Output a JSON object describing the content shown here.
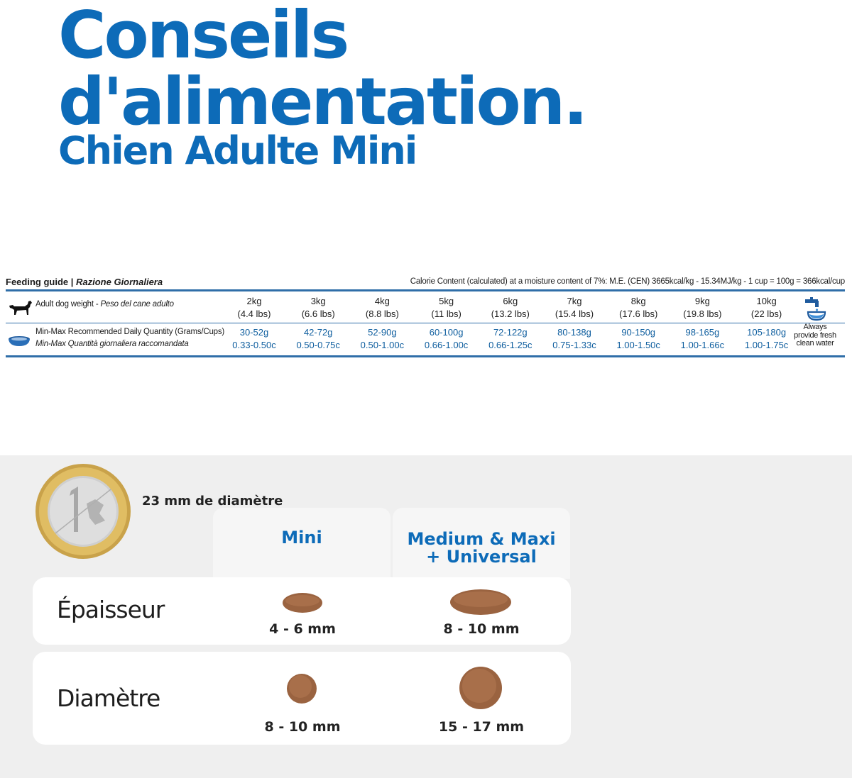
{
  "header": {
    "title_line1": "Conseils",
    "title_line2": "d'alimentation.",
    "subtitle": "Chien Adulte Mini"
  },
  "feeding_guide": {
    "title": "Feeding guide",
    "title_sep": " | ",
    "title_it": "Razione Giornaliera",
    "calorie_note": "Calorie Content (calculated) at a moisture content of 7%: M.E. (CEN) 3665kcal/kg - 15.34MJ/kg - 1 cup = 100g = 366kcal/cup",
    "weight_label": "Adult dog weight - ",
    "weight_label_it": "Peso del cane adulto",
    "qty_label": "Min-Max Recommended Daily Quantity (Grams/Cups)",
    "qty_label_it": "Min-Max Quantità giornaliera raccomandata",
    "columns": [
      {
        "kg": "2kg",
        "lbs": "(4.4 lbs)",
        "grams": "30-52g",
        "cups": "0.33-0.50c"
      },
      {
        "kg": "3kg",
        "lbs": "(6.6 lbs)",
        "grams": "42-72g",
        "cups": "0.50-0.75c"
      },
      {
        "kg": "4kg",
        "lbs": "(8.8 lbs)",
        "grams": "52-90g",
        "cups": "0.50-1.00c"
      },
      {
        "kg": "5kg",
        "lbs": "(11 lbs)",
        "grams": "60-100g",
        "cups": "0.66-1.00c"
      },
      {
        "kg": "6kg",
        "lbs": "(13.2 lbs)",
        "grams": "72-122g",
        "cups": "0.66-1.25c"
      },
      {
        "kg": "7kg",
        "lbs": "(15.4 lbs)",
        "grams": "80-138g",
        "cups": "0.75-1.33c"
      },
      {
        "kg": "8kg",
        "lbs": "(17.6 lbs)",
        "grams": "90-150g",
        "cups": "1.00-1.50c"
      },
      {
        "kg": "9kg",
        "lbs": "(19.8 lbs)",
        "grams": "98-165g",
        "cups": "1.00-1.66c"
      },
      {
        "kg": "10kg",
        "lbs": "(22 lbs)",
        "grams": "105-180g",
        "cups": "1.00-1.75c"
      }
    ],
    "water_note": [
      "Always",
      "provide fresh",
      "clean water"
    ]
  },
  "kibble": {
    "coin_label": "23 mm de diamètre",
    "col_mini": "Mini",
    "col_medium_l1": "Medium & Maxi",
    "col_medium_l2": "+ Universal",
    "thickness_label": "Épaisseur",
    "thickness_mini": "4 - 6 mm",
    "thickness_medium": "8 - 10 mm",
    "diameter_label": "Diamètre",
    "diameter_mini": "8 - 10 mm",
    "diameter_medium": "15 - 17 mm"
  },
  "colors": {
    "brand_blue": "#0d6bb8",
    "table_rule": "#2f6ea8",
    "kibble_brown": "#9a6340",
    "section_bg": "#efefef"
  }
}
